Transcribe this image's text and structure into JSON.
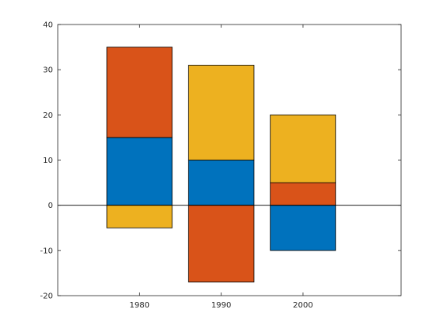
{
  "chart_data": {
    "type": "bar",
    "stacked": true,
    "categories": [
      "1980",
      "1990",
      "2000"
    ],
    "x": [
      1980,
      1990,
      2000
    ],
    "series": [
      {
        "values": [
          15,
          10,
          -10
        ],
        "color": "#0072BD"
      },
      {
        "values": [
          20,
          -17,
          5
        ],
        "color": "#D95319"
      },
      {
        "values": [
          -5,
          21,
          15
        ],
        "color": "#EDB120"
      }
    ],
    "xlim": [
      1970,
      2012
    ],
    "ylim": [
      -20,
      40
    ],
    "yticks": [
      -20,
      -10,
      0,
      10,
      20,
      30,
      40
    ],
    "ytick_labels": [
      "-20",
      "-10",
      "0",
      "10",
      "20",
      "30",
      "40"
    ],
    "xtick_labels": [
      "1980",
      "1990",
      "2000"
    ],
    "bar_width_years": 8,
    "baseline": 0,
    "title": "",
    "xlabel": "",
    "ylabel": "",
    "grid": false,
    "legend": "none"
  }
}
